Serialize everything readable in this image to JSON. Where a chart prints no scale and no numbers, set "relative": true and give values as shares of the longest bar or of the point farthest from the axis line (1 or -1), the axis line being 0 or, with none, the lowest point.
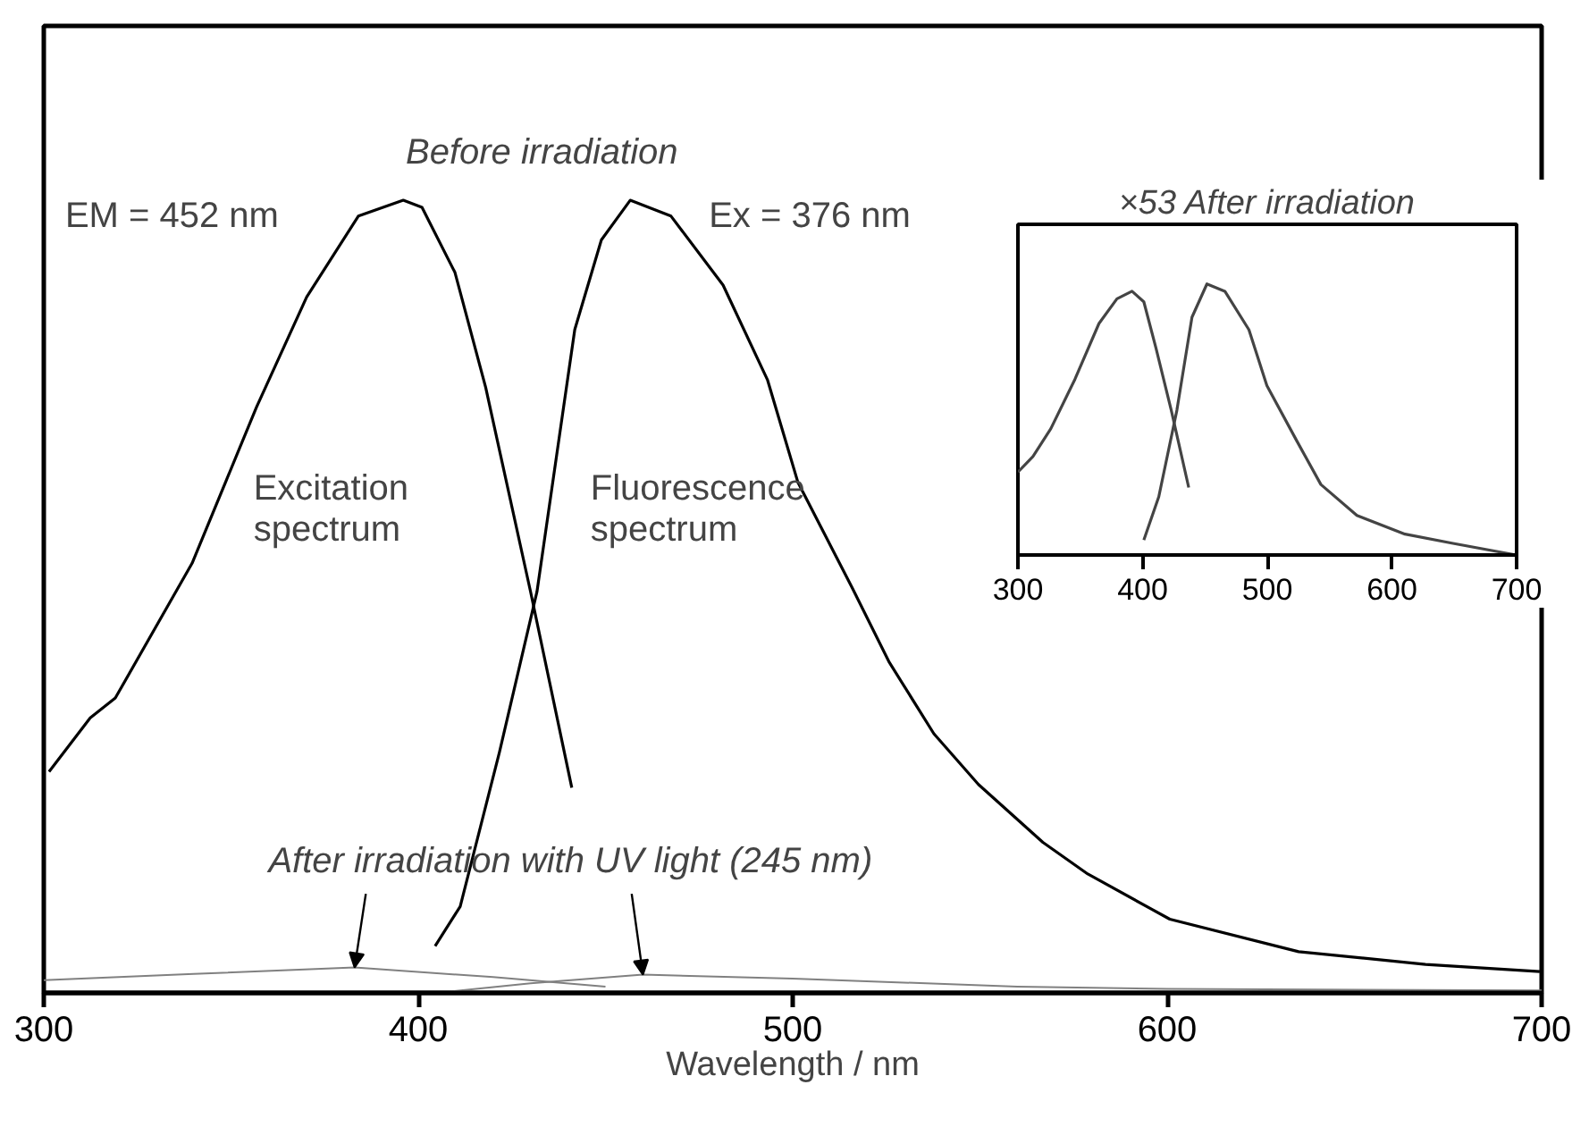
{
  "chart_data": [
    {
      "type": "line",
      "xlabel": "Wavelength / nm",
      "relative": true,
      "xlim": [
        300,
        700
      ],
      "xticks": [
        300,
        400,
        500,
        600,
        700
      ],
      "grid": false,
      "annotations": [
        "Before irradiation",
        "EM = 452 nm",
        "Ex = 376 nm",
        "Excitation\nspectrum",
        "Fluorescence\nspectrum",
        "After irradiation with UV light (245 nm)"
      ],
      "series": [
        {
          "color": "#000000",
          "x": [
            301.4,
            312.4,
            319.1,
            339.6,
            356.8,
            370.2,
            384,
            396,
            401,
            409.8,
            418,
            430,
            441
          ],
          "values": [
            0.279,
            0.347,
            0.372,
            0.542,
            0.739,
            0.878,
            0.98,
            1.0,
            0.991,
            0.909,
            0.764,
            0.506,
            0.259
          ]
        },
        {
          "color": "#000000",
          "x": [
            404.5,
            411.2,
            421.7,
            431.7,
            441.8,
            448.9,
            456.6,
            467.5,
            481.4,
            493.3,
            501.4,
            515.8,
            525.8,
            537.7,
            549.6,
            566.8,
            578.8,
            600.7,
            635.1,
            669,
            699.5
          ],
          "values": [
            0.059,
            0.109,
            0.304,
            0.506,
            0.837,
            0.95,
            1.0,
            0.98,
            0.893,
            0.773,
            0.644,
            0.512,
            0.417,
            0.327,
            0.263,
            0.19,
            0.15,
            0.093,
            0.052,
            0.036,
            0.027
          ]
        },
        {
          "color": "#808080",
          "x": [
            300,
            340,
            383,
            420,
            450
          ],
          "values": [
            0.016,
            0.024,
            0.032,
            0.02,
            0.008
          ]
        },
        {
          "color": "#808080",
          "x": [
            405,
            430,
            460,
            500,
            560,
            600,
            700
          ],
          "values": [
            0.0,
            0.012,
            0.023,
            0.018,
            0.008,
            0.005,
            0.003
          ]
        }
      ]
    },
    {
      "type": "line",
      "title": "×53 After irradiation",
      "relative": true,
      "xlim": [
        300,
        700
      ],
      "xticks": [
        300,
        400,
        500,
        600,
        700
      ],
      "grid": false,
      "series": [
        {
          "color": "#444444",
          "x": [
            300,
            312,
            326.4,
            345.7,
            365,
            379.4,
            391.5,
            401,
            410.8,
            423,
            437
          ],
          "values": [
            0.306,
            0.363,
            0.466,
            0.648,
            0.854,
            0.945,
            0.973,
            0.934,
            0.762,
            0.534,
            0.249
          ]
        },
        {
          "color": "#444444",
          "x": [
            401,
            413,
            427.5,
            439.6,
            451.6,
            466,
            485.3,
            499.7,
            523.8,
            543,
            571.9,
            610.5,
            649,
            699.6
          ],
          "values": [
            0.055,
            0.215,
            0.534,
            0.877,
            1.0,
            0.973,
            0.831,
            0.625,
            0.42,
            0.26,
            0.146,
            0.077,
            0.043,
            0.0
          ]
        }
      ]
    }
  ]
}
